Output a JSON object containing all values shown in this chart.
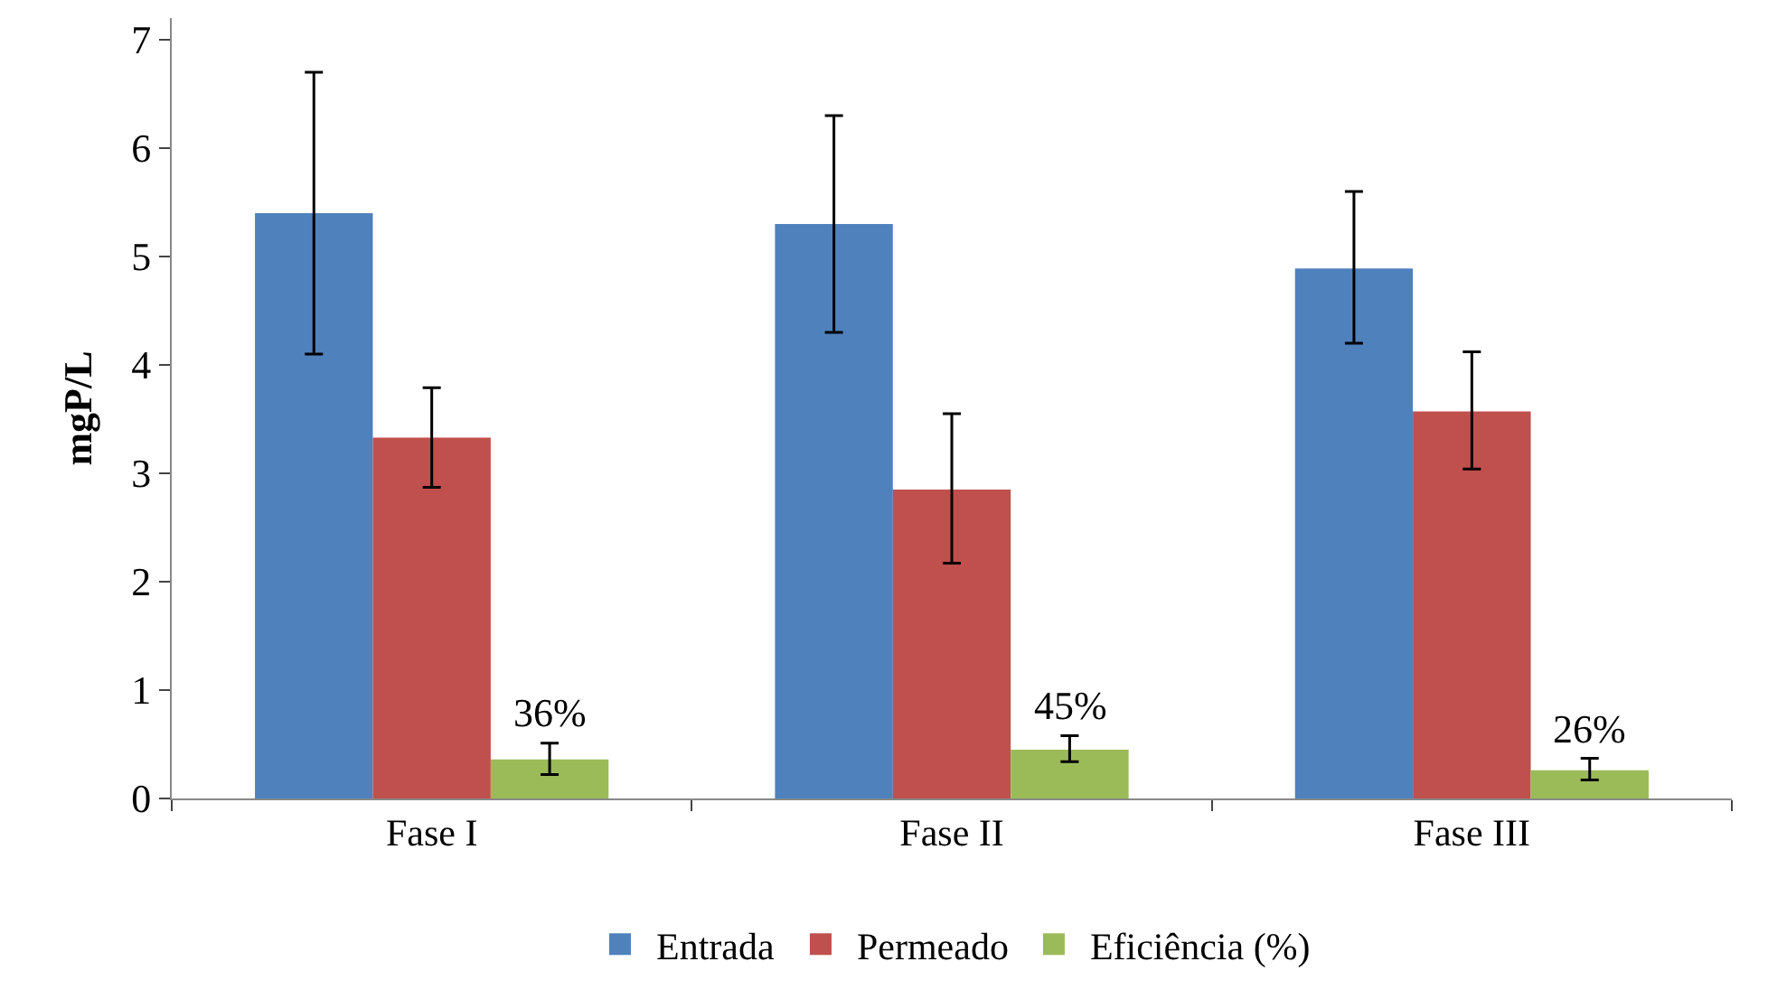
{
  "chart_data": {
    "type": "bar",
    "ylabel": "mgP/L",
    "categories": [
      "Fase I",
      "Fase II",
      "Fase III"
    ],
    "series": [
      {
        "name": "Entrada",
        "color": "#4f81bd",
        "values": [
          5.4,
          5.3,
          4.89
        ],
        "errors": [
          [
            4.1,
            6.7
          ],
          [
            4.3,
            6.3
          ],
          [
            4.2,
            5.6
          ]
        ]
      },
      {
        "name": "Permeado",
        "color": "#c0504d",
        "values": [
          3.33,
          2.85,
          3.57
        ],
        "errors": [
          [
            2.87,
            3.79
          ],
          [
            2.17,
            3.55
          ],
          [
            3.04,
            4.12
          ]
        ]
      },
      {
        "name": "Eficiência (%)",
        "color": "#9bbb59",
        "values": [
          0.36,
          0.45,
          0.26
        ],
        "errors": [
          [
            0.22,
            0.51
          ],
          [
            0.34,
            0.58
          ],
          [
            0.17,
            0.37
          ]
        ],
        "value_labels": [
          "36%",
          "45%",
          "26%"
        ]
      }
    ],
    "ylim": [
      0,
      7.2
    ],
    "yticks": [
      0,
      1,
      2,
      3,
      4,
      5,
      6,
      7
    ],
    "legend": "bottom"
  }
}
